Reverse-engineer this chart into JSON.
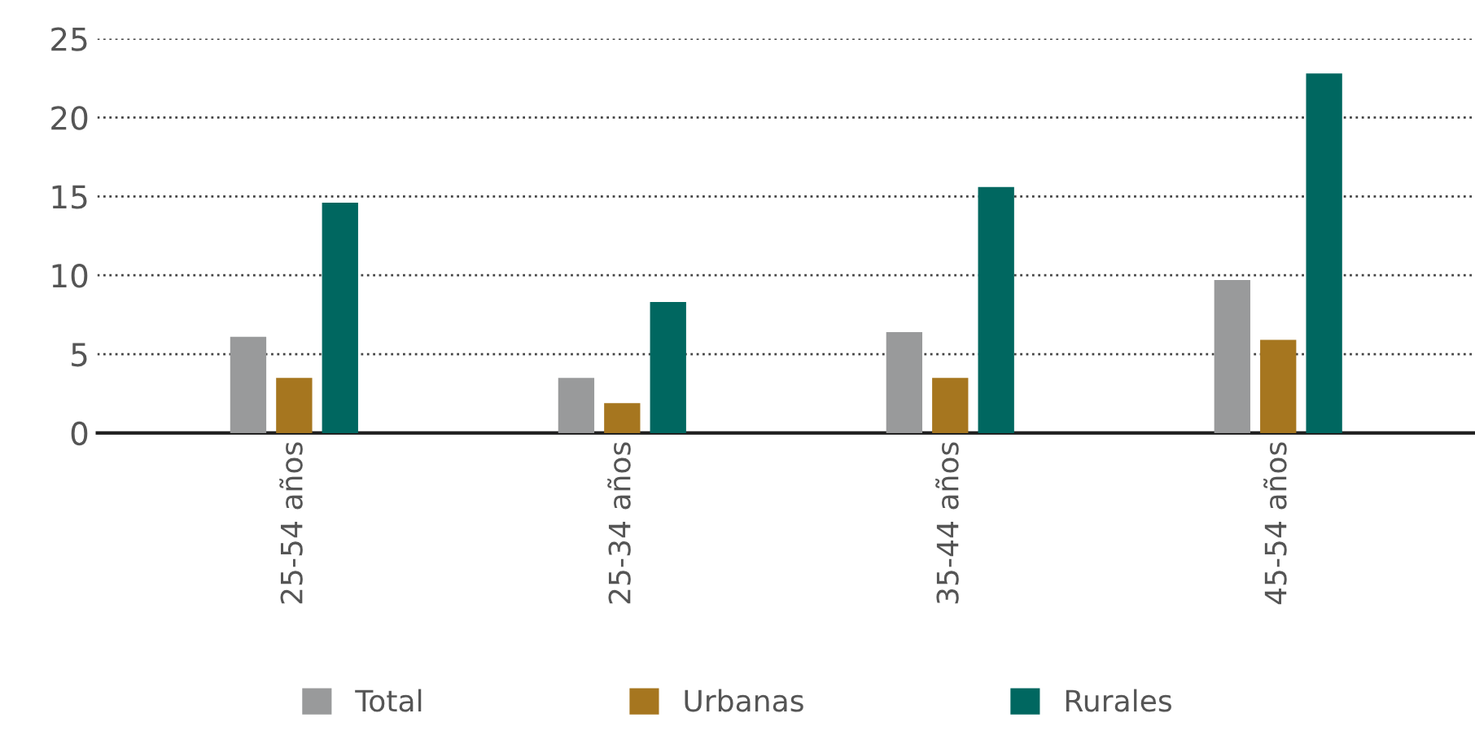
{
  "chart_data": {
    "type": "bar",
    "categories": [
      "25-54 años",
      "25-34 años",
      "35-44 años",
      "45-54 años"
    ],
    "series": [
      {
        "name": "Total",
        "color": "#999a9b",
        "values": [
          6.1,
          3.5,
          6.4,
          9.7
        ]
      },
      {
        "name": "Urbanas",
        "color": "#a6761f",
        "values": [
          3.5,
          1.9,
          3.5,
          5.9
        ]
      },
      {
        "name": "Rurales",
        "color": "#006760",
        "values": [
          14.6,
          8.3,
          15.6,
          22.8
        ]
      }
    ],
    "ylim": [
      0,
      25
    ],
    "yticks": [
      0,
      5,
      10,
      15,
      20,
      25
    ],
    "grid": "y",
    "legend": "bottom"
  }
}
